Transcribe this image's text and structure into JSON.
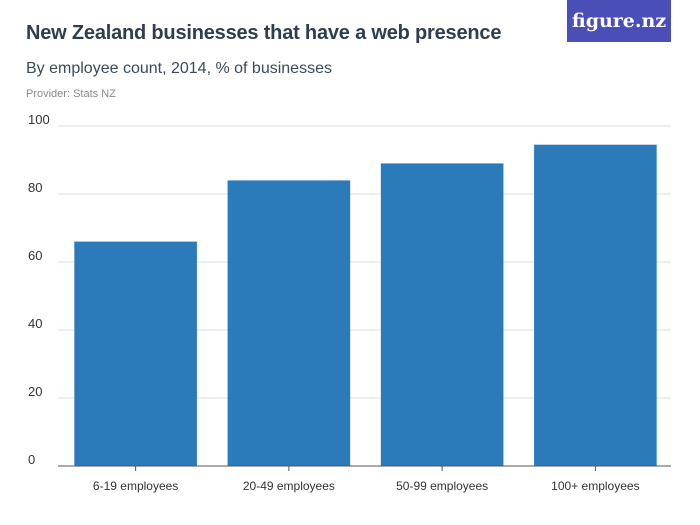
{
  "header": {
    "title": "New Zealand businesses that have a web presence",
    "subtitle": "By employee count, 2014, % of businesses",
    "provider": "Provider: Stats NZ",
    "logo_text": "figure.nz"
  },
  "colors": {
    "bar": "#2b7bba",
    "logo_bg": "#4a4fb7",
    "grid": "#dcdcdc"
  },
  "chart_data": {
    "type": "bar",
    "categories": [
      "6-19 employees",
      "20-49 employees",
      "50-99 employees",
      "100+ employees"
    ],
    "values": [
      66,
      84,
      89,
      94.5
    ],
    "title": "New Zealand businesses that have a web presence",
    "subtitle": "By employee count, 2014, % of businesses",
    "xlabel": "",
    "ylabel": "",
    "ylim": [
      0,
      100
    ],
    "yticks": [
      0,
      20,
      40,
      60,
      80,
      100
    ],
    "grid": true,
    "legend": "none"
  }
}
